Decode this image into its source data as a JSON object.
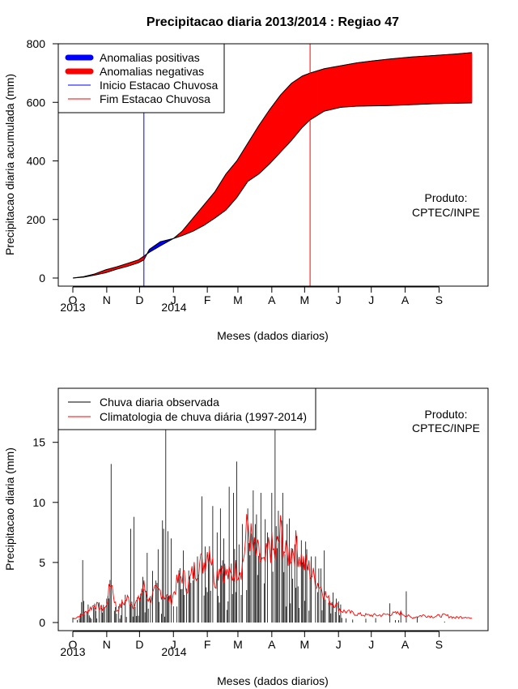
{
  "title": "Precipitacao diaria 2013/2014 : Regiao 47",
  "colors": {
    "positive": "#0000ff",
    "negative": "#ff0000",
    "start_line": "#0000ff",
    "end_line": "#ff0000",
    "observed": "#000000",
    "climatology": "#ff0000",
    "axis": "#000000"
  },
  "chart_data": [
    {
      "type": "area",
      "name": "accumulated",
      "ylabel": "Precipitacao diaria acumulada (mm)",
      "xlabel": "Meses (dados diarios)",
      "ylim": [
        0,
        800
      ],
      "yticks": [
        "0",
        "200",
        "400",
        "600",
        "800"
      ],
      "xticks": [
        "O",
        "N",
        "D",
        "J",
        "F",
        "M",
        "A",
        "M",
        "J",
        "J",
        "A",
        "S"
      ],
      "year_labels": [
        "2013",
        "2014"
      ],
      "legend": [
        "Anomalias positivas",
        "Anomalias negativas",
        "Inicio Estacao Chuvosa",
        "Fim Estacao Chuvosa"
      ],
      "annotation": [
        "Produto:",
        "CPTEC/INPE"
      ],
      "start_rainy_season_day": 65,
      "end_rainy_season_day": 217,
      "observed_cumulative": {
        "day": [
          0,
          10,
          20,
          30,
          40,
          50,
          60,
          65,
          70,
          80,
          92,
          100,
          110,
          120,
          130,
          140,
          150,
          160,
          170,
          180,
          190,
          200,
          210,
          217,
          230,
          245,
          260,
          275,
          290,
          310,
          330,
          350,
          365
        ],
        "value": [
          0,
          3,
          10,
          18,
          30,
          40,
          52,
          62,
          98,
          124,
          135,
          145,
          160,
          180,
          205,
          232,
          275,
          330,
          355,
          390,
          430,
          470,
          515,
          540,
          570,
          583,
          587,
          588,
          589,
          592,
          595,
          597,
          598
        ]
      },
      "climatology_cumulative": {
        "day": [
          0,
          10,
          20,
          30,
          40,
          50,
          60,
          65,
          70,
          80,
          92,
          100,
          110,
          120,
          130,
          140,
          150,
          160,
          170,
          180,
          190,
          200,
          210,
          217,
          230,
          245,
          260,
          275,
          290,
          310,
          330,
          350,
          365
        ],
        "value": [
          0,
          5,
          14,
          28,
          38,
          50,
          62,
          75,
          88,
          110,
          135,
          160,
          205,
          250,
          295,
          355,
          400,
          460,
          520,
          575,
          625,
          665,
          690,
          700,
          715,
          725,
          735,
          742,
          748,
          755,
          760,
          765,
          770
        ]
      }
    },
    {
      "type": "bar",
      "name": "daily",
      "ylabel": "Precipitacao diaria (mm)",
      "xlabel": "Meses (dados diarios)",
      "ylim": [
        0,
        19.5
      ],
      "yticks": [
        "0",
        "5",
        "10",
        "15"
      ],
      "xticks": [
        "O",
        "N",
        "D",
        "J",
        "F",
        "M",
        "A",
        "M",
        "J",
        "J",
        "A",
        "S"
      ],
      "year_labels": [
        "2013",
        "2014"
      ],
      "legend": [
        "Chuva diaria observada",
        "Climatologia de chuva diária (1997-2014)"
      ],
      "annotation": [
        "Produto:",
        "CPTEC/INPE"
      ],
      "observed_peaks": [
        [
          8,
          1.7
        ],
        [
          9,
          5.2
        ],
        [
          10,
          1.8
        ],
        [
          14,
          1.5
        ],
        [
          33,
          2.0
        ],
        [
          35,
          13.2
        ],
        [
          53,
          7.8
        ],
        [
          56,
          8.8
        ],
        [
          64,
          3.8
        ],
        [
          68,
          5.8
        ],
        [
          73,
          4.3
        ],
        [
          78,
          6.1
        ],
        [
          82,
          8.5
        ],
        [
          83,
          7.8
        ],
        [
          85,
          16.2
        ],
        [
          87,
          7.6
        ],
        [
          90,
          7.0
        ],
        [
          101,
          6.0
        ],
        [
          110,
          3.5
        ],
        [
          114,
          5.5
        ],
        [
          118,
          10.5
        ],
        [
          124,
          5.0
        ],
        [
          128,
          9.7
        ],
        [
          132,
          7.5
        ],
        [
          135,
          9.5
        ],
        [
          138,
          7.0
        ],
        [
          143,
          11.3
        ],
        [
          147,
          10.8
        ],
        [
          150,
          13.4
        ],
        [
          152,
          6.5
        ],
        [
          155,
          8.2
        ],
        [
          160,
          9.5
        ],
        [
          163,
          7.4
        ],
        [
          165,
          11.0
        ],
        [
          168,
          9.0
        ],
        [
          172,
          10.8
        ],
        [
          176,
          8.6
        ],
        [
          178,
          7.5
        ],
        [
          182,
          10.8
        ],
        [
          185,
          16.5
        ],
        [
          188,
          9.3
        ],
        [
          192,
          10.8
        ],
        [
          196,
          8.2
        ],
        [
          200,
          6.2
        ],
        [
          205,
          7.2
        ],
        [
          210,
          5.0
        ],
        [
          214,
          6.1
        ],
        [
          218,
          5.5
        ],
        [
          222,
          5.5
        ],
        [
          227,
          4.5
        ],
        [
          230,
          6.0
        ],
        [
          235,
          1.8
        ],
        [
          238,
          2.5
        ],
        [
          245,
          1.5
        ],
        [
          290,
          1.6
        ],
        [
          300,
          0.9
        ],
        [
          305,
          2.6
        ],
        [
          315,
          0.5
        ]
      ],
      "climatology": {
        "day": [
          0,
          10,
          20,
          25,
          30,
          35,
          40,
          45,
          50,
          55,
          60,
          65,
          70,
          75,
          80,
          85,
          90,
          95,
          100,
          105,
          110,
          115,
          120,
          125,
          130,
          135,
          140,
          145,
          150,
          155,
          160,
          165,
          170,
          175,
          180,
          185,
          190,
          195,
          200,
          205,
          210,
          215,
          220,
          225,
          230,
          235,
          240,
          245,
          250,
          260,
          270,
          280,
          290,
          300,
          310,
          320,
          330,
          340,
          350,
          360,
          365
        ],
        "value": [
          0.3,
          0.7,
          1.5,
          1.2,
          1.2,
          3.5,
          1.0,
          1.5,
          2.0,
          1.5,
          1.8,
          3.0,
          1.8,
          2.5,
          2.6,
          2.2,
          1.8,
          3.2,
          4.0,
          3.0,
          4.2,
          4.8,
          5.0,
          6.5,
          3.5,
          5.0,
          4.0,
          3.8,
          4.5,
          4.7,
          8.2,
          6.0,
          5.5,
          4.5,
          6.5,
          5.5,
          7.5,
          5.5,
          6.0,
          6.3,
          5.0,
          4.6,
          3.8,
          3.2,
          2.5,
          1.7,
          1.6,
          1.0,
          0.9,
          0.7,
          0.6,
          0.6,
          0.7,
          0.8,
          0.4,
          0.6,
          0.5,
          0.6,
          0.4,
          0.5,
          0.3
        ]
      }
    }
  ]
}
